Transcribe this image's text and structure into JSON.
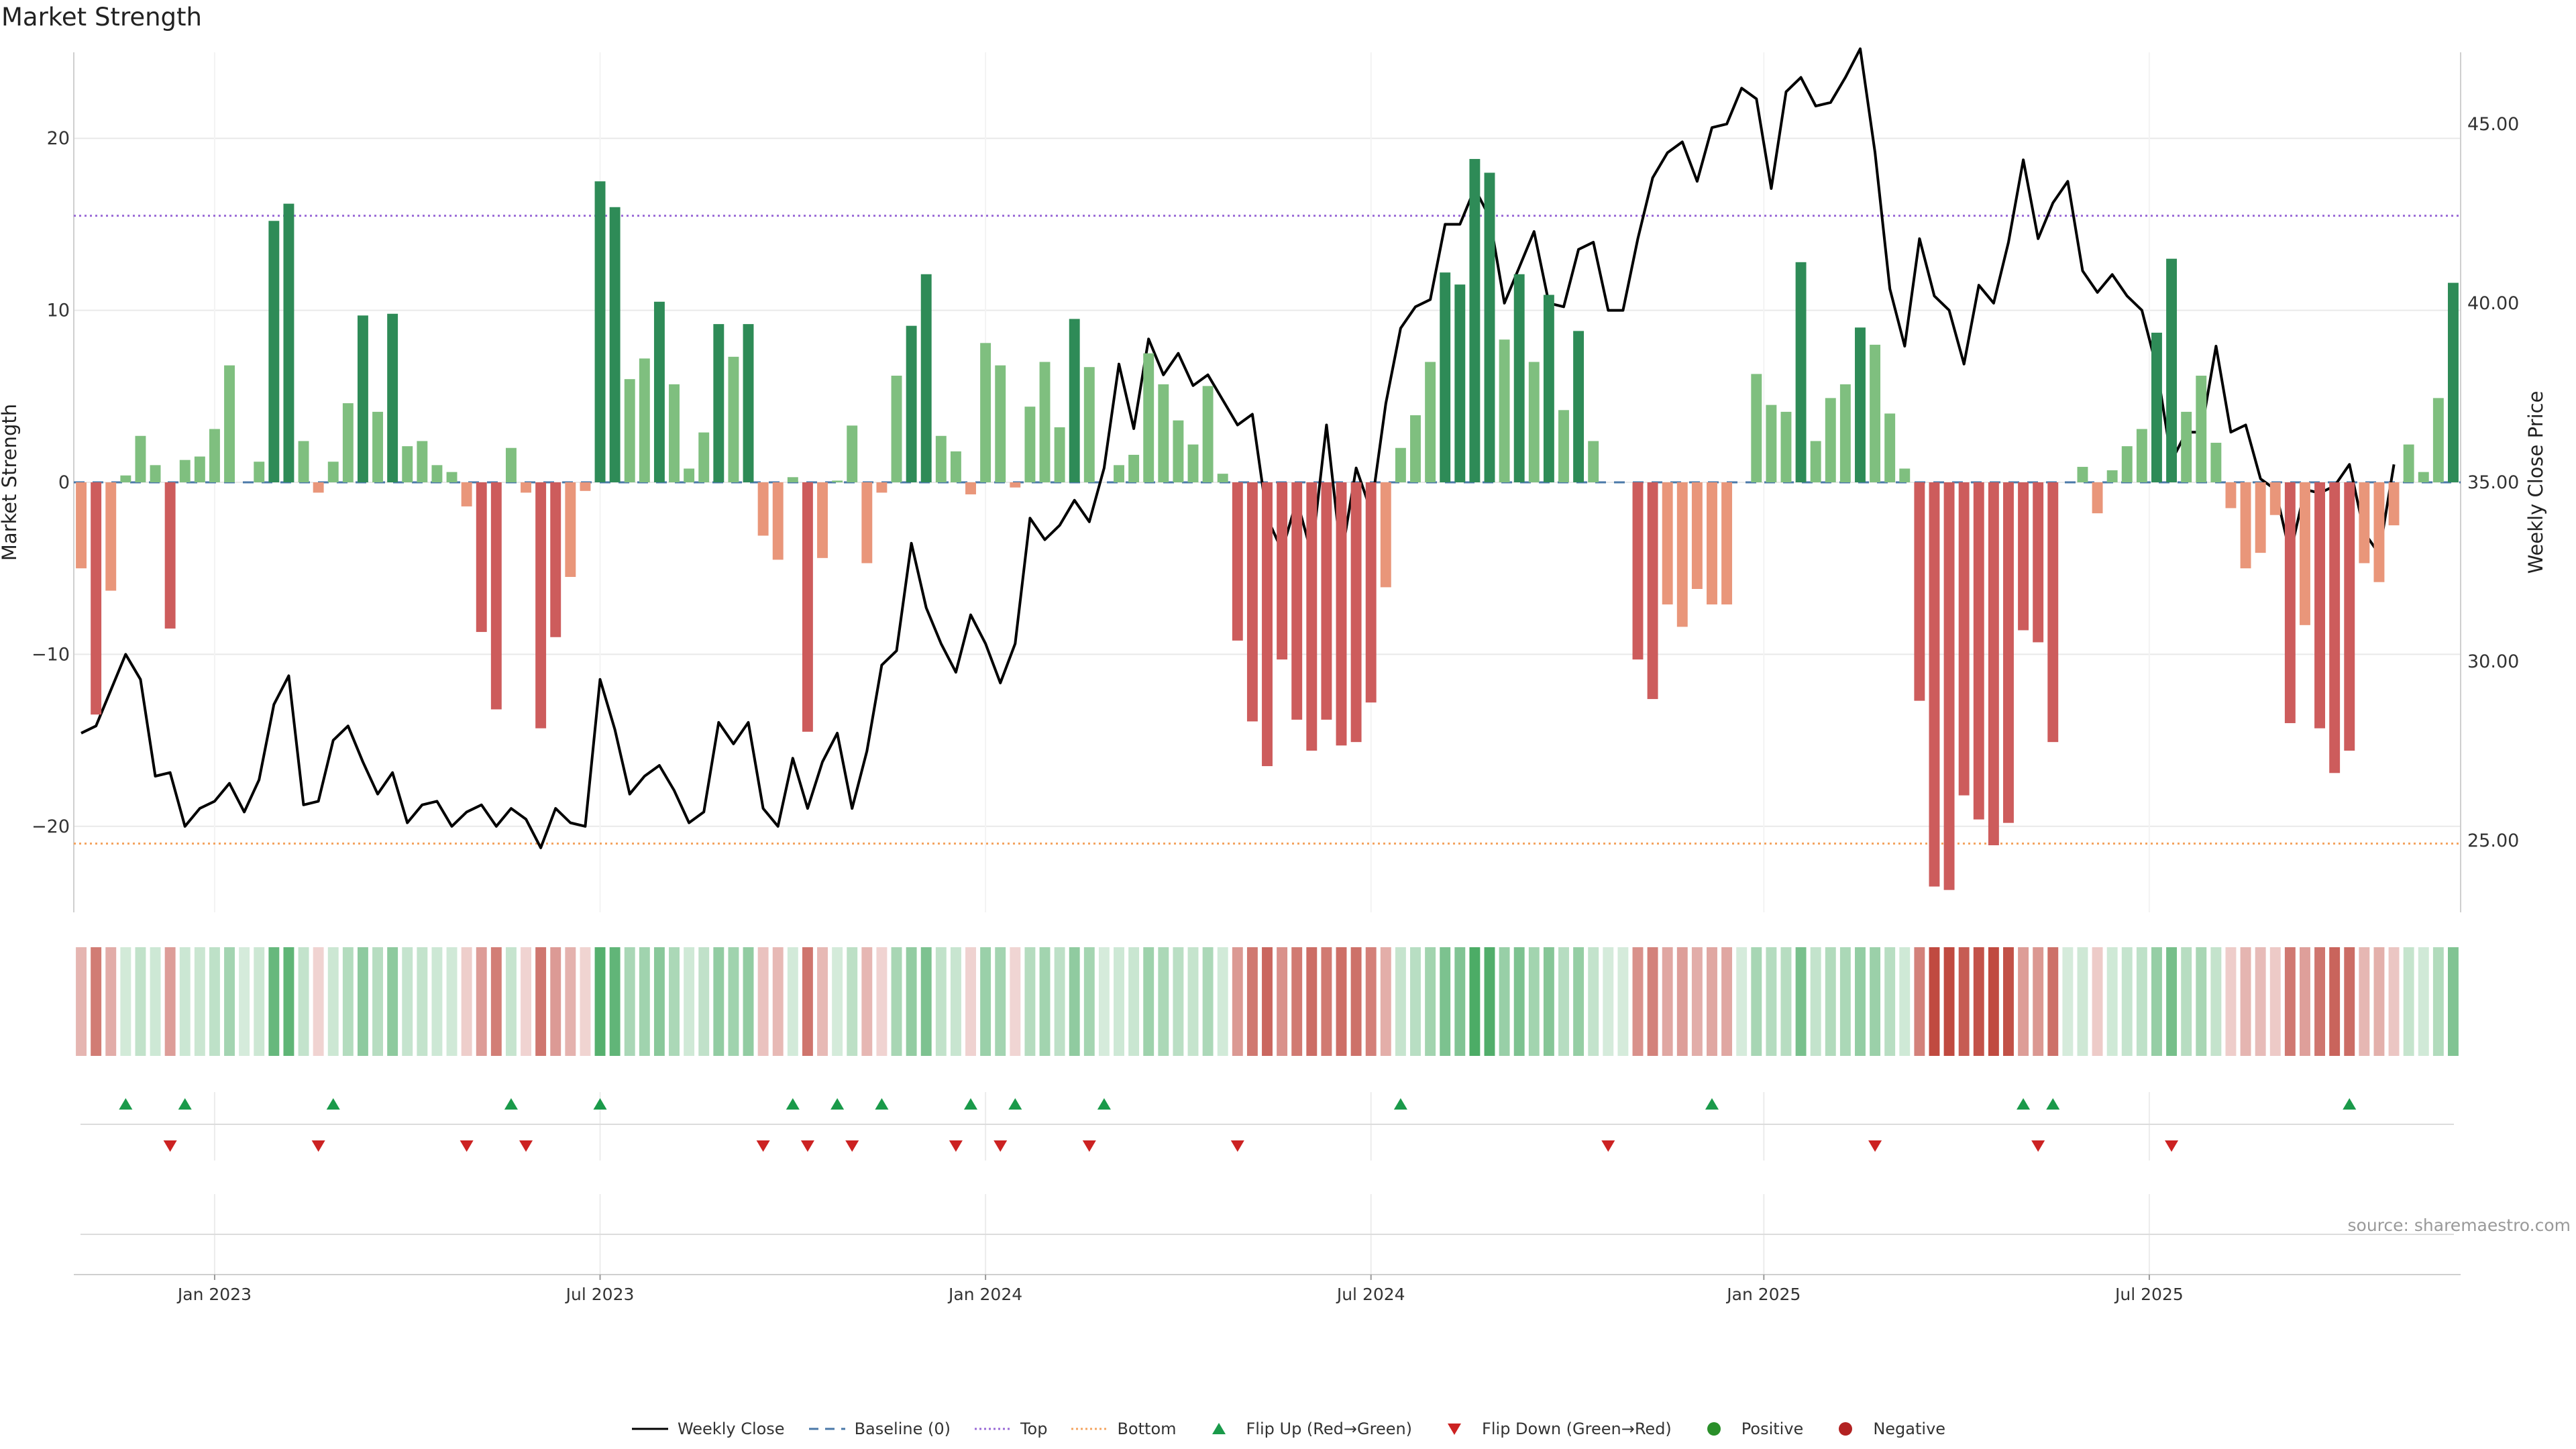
{
  "title": "Market Strength",
  "source": "source: sharemaestro.com",
  "colors": {
    "strong_green": "#2e8b57",
    "light_green": "#7fbf7f",
    "strong_red": "#cd5c5c",
    "light_red": "#e9967a",
    "price_line": "#000000",
    "top_line": "#9a6ad6",
    "bottom_line": "#f4a460",
    "baseline": "#4a78a8",
    "flip_up": "#1a9a4a",
    "flip_down": "#cc2222",
    "positive": "#2a8f2a",
    "negative": "#b22222"
  },
  "chart_data": {
    "type": "bar",
    "title": "Market Strength",
    "ylabel": "Market Strength",
    "y2label": "Weekly Close Price",
    "ylim": [
      -25,
      25
    ],
    "y2lim": [
      23.0,
      47.0
    ],
    "yticks": [
      -20,
      -10,
      0,
      10,
      20
    ],
    "y2ticks": [
      "25.00",
      "30.00",
      "35.00",
      "40.00",
      "45.00"
    ],
    "top_threshold": 15.5,
    "bottom_threshold": -21,
    "xticks": [
      {
        "label": "Jan 2023",
        "index": 9.5
      },
      {
        "label": "Jul 2023",
        "index": 35.5
      },
      {
        "label": "Jan 2024",
        "index": 61.5
      },
      {
        "label": "Jul 2024",
        "index": 87.5
      },
      {
        "label": "Jan 2025",
        "index": 114
      },
      {
        "label": "Jul 2025",
        "index": 140
      }
    ],
    "strength": [
      -5,
      -13.5,
      -6.3,
      0.4,
      2.7,
      1,
      -8.5,
      1.3,
      1.5,
      3.1,
      6.8,
      0,
      1.2,
      15.2,
      16.2,
      2.4,
      -0.6,
      1.2,
      4.6,
      9.7,
      4.1,
      9.8,
      2.1,
      2.4,
      1,
      0.6,
      -1.4,
      -8.7,
      -13.2,
      2,
      -0.6,
      -14.3,
      -9,
      -5.5,
      -0.5,
      17.5,
      16,
      6,
      7.2,
      10.5,
      5.7,
      0.8,
      2.9,
      9.2,
      7.3,
      9.2,
      -3.1,
      -4.5,
      0.3,
      -14.5,
      -4.4,
      0.1,
      3.3,
      -4.7,
      -0.6,
      6.2,
      9.1,
      12.1,
      2.7,
      1.8,
      -0.7,
      8.1,
      6.8,
      -0.3,
      4.4,
      7,
      3.2,
      9.5,
      6.7,
      0,
      1,
      1.6,
      7.5,
      5.7,
      3.6,
      2.2,
      5.6,
      0.5,
      -9.2,
      -13.9,
      -16.5,
      -10.3,
      -13.8,
      -15.6,
      -13.8,
      -15.3,
      -15.1,
      -12.8,
      -6.1,
      2,
      3.9,
      7,
      12.2,
      11.5,
      18.8,
      18,
      8.3,
      12.1,
      7,
      10.9,
      4.2,
      8.8,
      2.4,
      0,
      0,
      -10.3,
      -12.6,
      -7.1,
      -8.4,
      -6.2,
      -7.1,
      -7.1,
      0,
      6.3,
      4.5,
      4.1,
      12.8,
      2.4,
      4.9,
      5.7,
      9,
      8,
      4,
      0.8,
      -12.7,
      -23.5,
      -23.7,
      -18.2,
      -19.6,
      -21.1,
      -19.8,
      -8.6,
      -9.3,
      -15.1,
      0,
      0.9,
      -1.8,
      0.7,
      2.1,
      3.1,
      8.7,
      13,
      4.1,
      6.2,
      2.3,
      -1.5,
      -5,
      -4.1,
      -1.9,
      -14,
      -8.3,
      -14.3,
      -16.9,
      -15.6,
      -4.7,
      -5.8,
      -2.5,
      2.2,
      0.6,
      4.9,
      11.6
    ],
    "price": [
      28.0,
      28.2,
      29.2,
      30.2,
      29.5,
      26.8,
      26.9,
      25.4,
      25.9,
      26.1,
      26.6,
      25.8,
      26.7,
      28.8,
      29.6,
      26.0,
      26.1,
      27.8,
      28.2,
      27.2,
      26.3,
      26.9,
      25.5,
      26.0,
      26.1,
      25.4,
      25.8,
      26.0,
      25.4,
      25.9,
      25.6,
      24.8,
      25.9,
      25.5,
      25.4,
      29.5,
      28.1,
      26.3,
      26.8,
      27.1,
      26.4,
      25.5,
      25.8,
      28.3,
      27.7,
      28.3,
      25.9,
      25.4,
      27.3,
      25.9,
      27.2,
      28.0,
      25.9,
      27.5,
      29.9,
      30.3,
      33.3,
      31.5,
      30.5,
      29.7,
      31.3,
      30.5,
      29.4,
      30.5,
      34.0,
      33.4,
      33.8,
      34.5,
      33.9,
      35.4,
      38.3,
      36.5,
      39.0,
      38.0,
      38.6,
      37.7,
      38.0,
      37.3,
      36.6,
      36.9,
      34.0,
      33.1,
      34.5,
      33.0,
      36.6,
      32.9,
      35.4,
      34.2,
      37.2,
      39.3,
      39.9,
      40.1,
      42.2,
      42.2,
      43.2,
      42.4,
      40.0,
      41.0,
      42.0,
      40.0,
      39.9,
      41.5,
      41.7,
      39.8,
      39.8,
      41.8,
      43.5,
      44.2,
      44.5,
      43.4,
      44.9,
      45.0,
      46.0,
      45.7,
      43.2,
      45.9,
      46.3,
      45.5,
      45.6,
      46.3,
      47.1,
      44.2,
      40.4,
      38.8,
      41.8,
      40.2,
      39.8,
      38.3,
      40.5,
      40.0,
      41.7,
      44.0,
      41.8,
      42.8,
      43.4,
      40.9,
      40.3,
      40.8,
      40.2,
      39.8,
      38.2,
      35.6,
      36.4,
      36.4,
      38.8,
      36.4,
      36.6,
      35.1,
      34.8,
      33.0,
      34.8,
      34.7,
      34.9,
      35.5,
      33.6,
      33.0,
      35.5
    ],
    "flip_up_indices": [
      3,
      7,
      17,
      29,
      35,
      48,
      51,
      54,
      60,
      63,
      69,
      89,
      110,
      131,
      133,
      153
    ],
    "flip_down_indices": [
      6,
      16,
      26,
      30,
      46,
      49,
      52,
      59,
      62,
      68,
      78,
      103,
      121,
      132,
      141
    ]
  },
  "legend": [
    {
      "key": "close",
      "label": "Weekly Close"
    },
    {
      "key": "baseline",
      "label": "Baseline (0)"
    },
    {
      "key": "top",
      "label": "Top"
    },
    {
      "key": "bottom",
      "label": "Bottom"
    },
    {
      "key": "flipup",
      "label": "Flip Up (Red→Green)"
    },
    {
      "key": "flipdown",
      "label": "Flip Down (Green→Red)"
    },
    {
      "key": "positive",
      "label": "Positive"
    },
    {
      "key": "negative",
      "label": "Negative"
    }
  ]
}
